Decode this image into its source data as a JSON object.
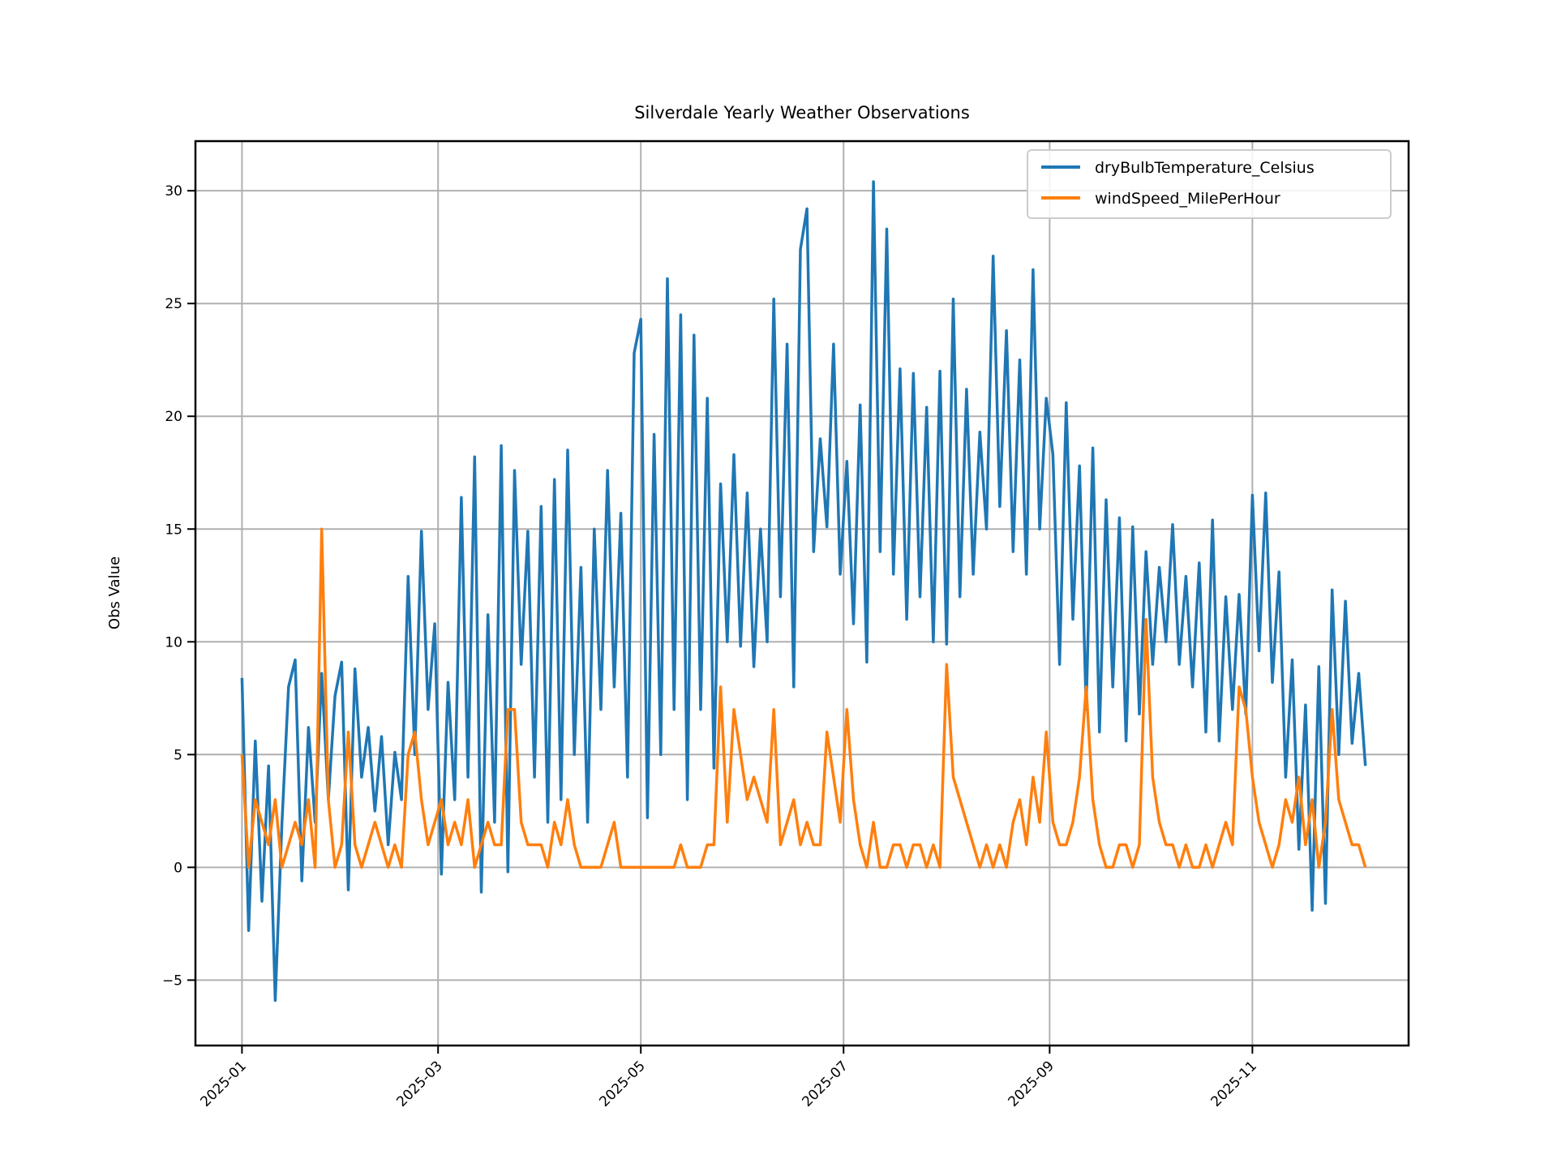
{
  "chart_data": {
    "type": "line",
    "title": "Silverdale Yearly Weather Observations",
    "xlabel": "",
    "ylabel": "Obs Value",
    "x_start_date": "2025-01-01",
    "x_step_days": 2,
    "xlim_days": [
      -14,
      351
    ],
    "ylim": [
      -7.9,
      32.2
    ],
    "grid": true,
    "legend_position": "top-right",
    "x_ticks": [
      {
        "label": "2025-01",
        "day": 0
      },
      {
        "label": "2025-03",
        "day": 59
      },
      {
        "label": "2025-05",
        "day": 120
      },
      {
        "label": "2025-07",
        "day": 181
      },
      {
        "label": "2025-09",
        "day": 243
      },
      {
        "label": "2025-11",
        "day": 304
      }
    ],
    "y_ticks": [
      {
        "label": "−5",
        "value": -5
      },
      {
        "label": "0",
        "value": 0
      },
      {
        "label": "5",
        "value": 5
      },
      {
        "label": "10",
        "value": 10
      },
      {
        "label": "15",
        "value": 15
      },
      {
        "label": "20",
        "value": 20
      },
      {
        "label": "25",
        "value": 25
      },
      {
        "label": "30",
        "value": 30
      }
    ],
    "series": [
      {
        "name": "dryBulbTemperature_Celsius",
        "color": "#1f77b4",
        "values": [
          8.4,
          -2.8,
          5.6,
          -1.5,
          4.5,
          -5.9,
          1.9,
          8,
          9.2,
          -0.6,
          6.2,
          2,
          8.6,
          3,
          7.6,
          9.1,
          -1,
          8.8,
          4,
          6.2,
          2.5,
          5.8,
          1,
          5.1,
          3,
          12.9,
          5,
          14.9,
          7,
          10.8,
          -0.3,
          8.2,
          3,
          16.4,
          4,
          18.2,
          -1.1,
          11.2,
          2,
          18.7,
          -0.2,
          17.6,
          9,
          14.9,
          4,
          16,
          2,
          17.2,
          3,
          18.5,
          5,
          13.3,
          2,
          15,
          7,
          17.6,
          8,
          15.7,
          4,
          22.8,
          24.3,
          2.2,
          19.2,
          5,
          26.1,
          7,
          24.5,
          3,
          23.6,
          7,
          20.8,
          4.4,
          17,
          10,
          18.3,
          9.8,
          16.6,
          8.9,
          15,
          10,
          25.2,
          12,
          23.2,
          8,
          27.4,
          29.2,
          14,
          19,
          15.1,
          23.2,
          13,
          18,
          10.8,
          20.5,
          9.1,
          30.4,
          14,
          28.3,
          13,
          22.1,
          11,
          21.9,
          12,
          20.4,
          10,
          22,
          9.9,
          25.2,
          12,
          21.2,
          13,
          19.3,
          15,
          27.1,
          16,
          23.8,
          14,
          22.5,
          13,
          26.5,
          15,
          20.8,
          18.3,
          9,
          20.6,
          11,
          17.8,
          7,
          18.6,
          6,
          16.3,
          8,
          15.5,
          5.6,
          15.1,
          6.8,
          14,
          9,
          13.3,
          10,
          15.2,
          9,
          12.9,
          8,
          13.5,
          6,
          15.4,
          5.6,
          12,
          7,
          12.1,
          6.8,
          16.5,
          9.6,
          16.6,
          8.2,
          13.1,
          4,
          9.2,
          0.8,
          7.2,
          -1.9,
          8.9,
          -1.6,
          12.3,
          5,
          11.8,
          5.5,
          8.6,
          4.5
        ]
      },
      {
        "name": "windSpeed_MilePerHour",
        "color": "#ff7f0e",
        "values": [
          5,
          0,
          3,
          2,
          1,
          3,
          0,
          1,
          2,
          1,
          3,
          0,
          15,
          3,
          0,
          1,
          6,
          1,
          0,
          1,
          2,
          1,
          0,
          1,
          0,
          5,
          6,
          3,
          1,
          2,
          3,
          1,
          2,
          1,
          3,
          0,
          1,
          2,
          1,
          1,
          7,
          7,
          2,
          1,
          1,
          1,
          0,
          2,
          1,
          3,
          1,
          0,
          0,
          0,
          0,
          1,
          2,
          0,
          0,
          0,
          0,
          0,
          0,
          0,
          0,
          0,
          1,
          0,
          0,
          0,
          1,
          1,
          8,
          2,
          7,
          5,
          3,
          4,
          3,
          2,
          7,
          1,
          2,
          3,
          1,
          2,
          1,
          1,
          6,
          4,
          2,
          7,
          3,
          1,
          0,
          2,
          0,
          0,
          1,
          1,
          0,
          1,
          1,
          0,
          1,
          0,
          9,
          4,
          3,
          2,
          1,
          0,
          1,
          0,
          1,
          0,
          2,
          3,
          1,
          4,
          2,
          6,
          2,
          1,
          1,
          2,
          4,
          8,
          3,
          1,
          0,
          0,
          1,
          1,
          0,
          1,
          11,
          4,
          2,
          1,
          1,
          0,
          1,
          0,
          0,
          1,
          0,
          1,
          2,
          1,
          8,
          7,
          4,
          2,
          1,
          0,
          1,
          3,
          2,
          4,
          1,
          3,
          0,
          2,
          7,
          3,
          2,
          1,
          1,
          0
        ]
      }
    ]
  }
}
